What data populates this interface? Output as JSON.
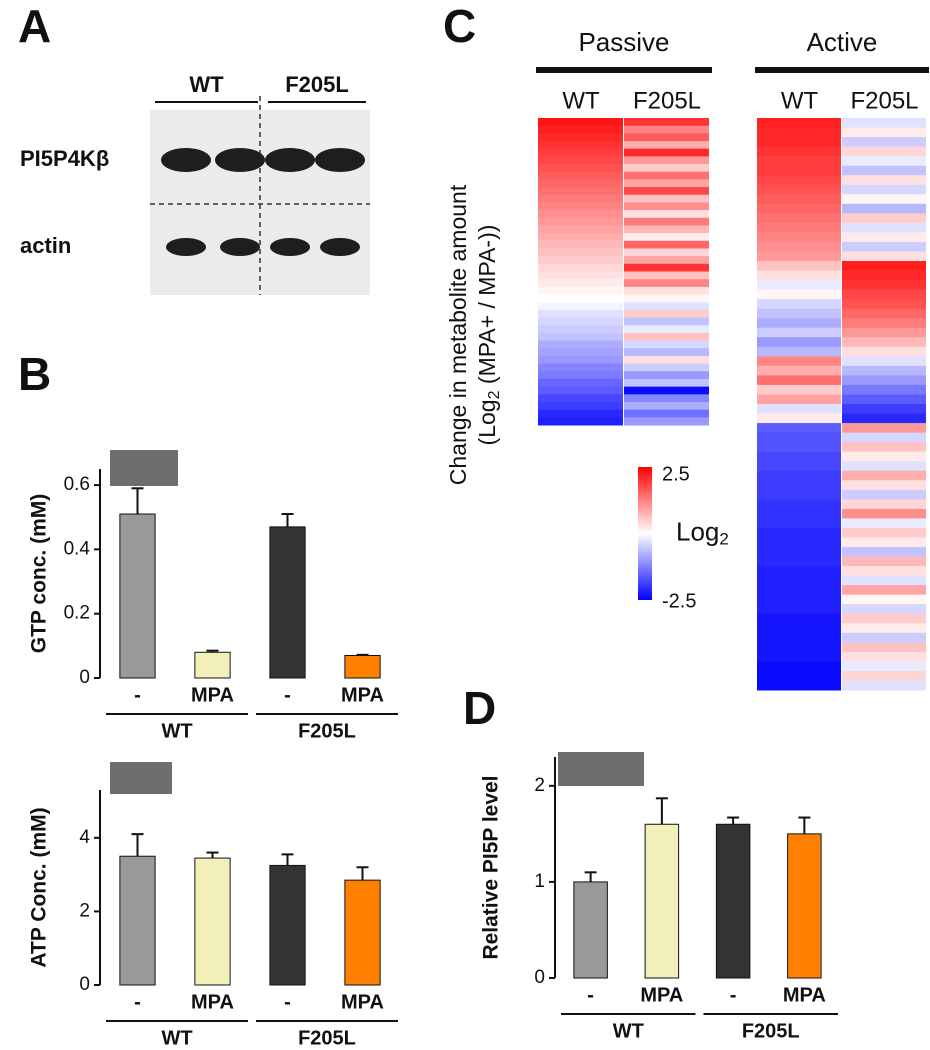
{
  "panel_labels": [
    "A",
    "B",
    "C",
    "D"
  ],
  "blot": {
    "columns": [
      "WT",
      "F205L"
    ],
    "rows": [
      "PI5P4Kβ",
      "actin"
    ]
  },
  "chart_data": [
    {
      "type": "bar",
      "ylabel": "GTP conc. (mM)",
      "categories": [
        "-",
        "MPA",
        "-",
        "MPA"
      ],
      "groups": [
        "WT",
        "F205L"
      ],
      "values": [
        0.51,
        0.08,
        0.47,
        0.07
      ],
      "errors": [
        0.08,
        0.005,
        0.04,
        0.002
      ],
      "colors": [
        "#999999",
        "#f0f0b8",
        "#333333",
        "#ff8000"
      ],
      "ylim": [
        0,
        0.65
      ],
      "yticks": [
        0,
        0.2,
        0.4,
        0.6
      ]
    },
    {
      "type": "bar",
      "ylabel": "ATP Conc. (mM)",
      "categories": [
        "-",
        "MPA",
        "-",
        "MPA"
      ],
      "groups": [
        "WT",
        "F205L"
      ],
      "values": [
        3.5,
        3.45,
        3.25,
        2.85
      ],
      "errors": [
        0.6,
        0.15,
        0.3,
        0.35
      ],
      "colors": [
        "#999999",
        "#f0f0b8",
        "#333333",
        "#ff8000"
      ],
      "ylim": [
        0,
        5.3
      ],
      "yticks": [
        0,
        2,
        4
      ]
    },
    {
      "type": "heatmap",
      "ylabel": "Change in metabolite amount",
      "ylabel2": [
        "(Log",
        "2",
        " (MPA+ / MPA-))"
      ],
      "clim": [
        -2.5,
        2.5
      ],
      "cticks": [
        2.5,
        -2.5
      ],
      "colorbar_label": [
        "Log",
        "2"
      ],
      "colors": [
        "#0000ff",
        "#ffffff",
        "#ff0000"
      ],
      "panels": [
        {
          "name": "Passive",
          "series": [
            {
              "name": "WT",
              "values": [
                2.3,
                2.2,
                2.1,
                2.0,
                1.9,
                1.8,
                1.7,
                1.6,
                1.5,
                1.4,
                1.3,
                1.2,
                1.1,
                1.0,
                0.9,
                0.8,
                0.7,
                0.6,
                0.5,
                0.4,
                0.3,
                0.2,
                0.1,
                0,
                -0.1,
                -0.3,
                -0.4,
                -0.5,
                -0.6,
                -0.8,
                -0.9,
                -1.0,
                -1.2,
                -1.3,
                -1.5,
                -1.6,
                -1.8,
                -1.9,
                -2.1,
                -2.2
              ]
            },
            {
              "name": "F205L",
              "values": [
                2.0,
                1.2,
                1.6,
                0.8,
                2.1,
                1.0,
                0.5,
                1.4,
                0.9,
                1.8,
                0.6,
                1.1,
                0.3,
                1.3,
                0.7,
                0.2,
                1.5,
                0.4,
                0.9,
                2.0,
                0.6,
                1.2,
                0.3,
                0.1,
                -0.3,
                0.5,
                -0.6,
                -0.2,
                0.6,
                -0.4,
                -0.7,
                0.3,
                -0.5,
                -1.0,
                -0.6,
                -2.4,
                -1.2,
                -0.8,
                -1.4,
                -1.0
              ]
            }
          ]
        },
        {
          "name": "Active",
          "series": [
            {
              "name": "WT",
              "values": [
                2.2,
                2.1,
                2.1,
                2.0,
                1.9,
                1.9,
                1.8,
                1.7,
                1.6,
                1.5,
                1.4,
                1.3,
                1.2,
                1.1,
                1.0,
                0.6,
                0.3,
                -0.2,
                0.1,
                -0.4,
                -0.6,
                -0.8,
                -0.5,
                -1.0,
                -0.7,
                1.2,
                0.8,
                1.4,
                0.5,
                0.9,
                -0.3,
                0.2,
                -1.6,
                -1.7,
                -1.7,
                -1.8,
                -1.8,
                -1.9,
                -1.9,
                -1.9,
                -2.0,
                -2.0,
                -2.0,
                -2.1,
                -2.1,
                -2.1,
                -2.1,
                -2.2,
                -2.2,
                -2.2,
                -2.2,
                -2.2,
                -2.3,
                -2.3,
                -2.3,
                -2.3,
                -2.3,
                -2.4,
                -2.4,
                -2.4
              ]
            },
            {
              "name": "F205L",
              "values": [
                -0.3,
                0.2,
                -0.5,
                0.4,
                -0.2,
                -0.6,
                0.3,
                -0.4,
                0.1,
                -0.7,
                0.5,
                -0.3,
                0.2,
                -0.5,
                0.3,
                2.2,
                2.1,
                2.0,
                1.8,
                1.7,
                1.5,
                1.3,
                1.0,
                0.7,
                0.3,
                -0.3,
                -0.7,
                -1.0,
                -1.3,
                -1.6,
                -1.9,
                -2.1,
                1.0,
                -0.4,
                0.6,
                0.2,
                -0.3,
                0.8,
                0.3,
                -0.5,
                0.4,
                1.1,
                -0.2,
                0.5,
                0.2,
                -0.6,
                0.7,
                0.3,
                -0.3,
                0.9,
                0.1,
                -0.4,
                0.5,
                0.2,
                -0.5,
                0.6,
                0.3,
                -0.2,
                0.4,
                -0.3
              ]
            }
          ]
        }
      ]
    },
    {
      "type": "bar",
      "ylabel": "Relative PI5P level",
      "categories": [
        "-",
        "MPA",
        "-",
        "MPA"
      ],
      "groups": [
        "WT",
        "F205L"
      ],
      "values": [
        1.0,
        1.6,
        1.6,
        1.5
      ],
      "errors": [
        0.1,
        0.27,
        0.07,
        0.17
      ],
      "colors": [
        "#999999",
        "#f0f0b8",
        "#333333",
        "#ff8000"
      ],
      "ylim": [
        0,
        2.3
      ],
      "yticks": [
        0,
        1,
        2
      ]
    }
  ]
}
